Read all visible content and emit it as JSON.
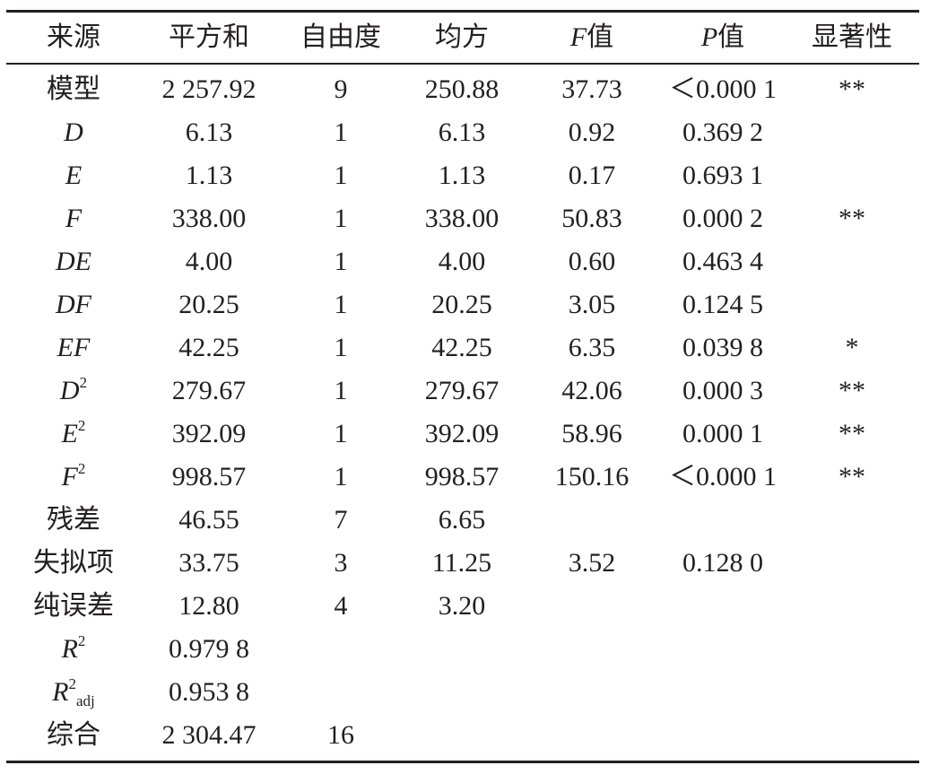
{
  "table": {
    "header": [
      "来源",
      "平方和",
      "自由度",
      "均方",
      {
        "italic": "F",
        "text": "值"
      },
      {
        "italic": "P",
        "text": "值"
      },
      "显著性"
    ],
    "rows": [
      [
        "模型",
        "2 257.92",
        "9",
        "250.88",
        "37.73",
        "＜0.000 1",
        "**"
      ],
      [
        {
          "italic": "D"
        },
        "6.13",
        "1",
        "6.13",
        "0.92",
        "0.369 2"
      ],
      [
        {
          "italic": "E"
        },
        "1.13",
        "1",
        "1.13",
        "0.17",
        "0.693 1"
      ],
      [
        {
          "italic": "F"
        },
        "338.00",
        "1",
        "338.00",
        "50.83",
        "0.000 2",
        "**"
      ],
      [
        {
          "italic": "DE"
        },
        "4.00",
        "1",
        "4.00",
        "0.60",
        "0.463 4"
      ],
      [
        {
          "italic": "DF"
        },
        "20.25",
        "1",
        "20.25",
        "3.05",
        "0.124 5"
      ],
      [
        {
          "italic": "EF"
        },
        "42.25",
        "1",
        "42.25",
        "6.35",
        "0.039 8",
        "*"
      ],
      [
        {
          "italic": "D",
          "sup": "2"
        },
        "279.67",
        "1",
        "279.67",
        "42.06",
        "0.000 3",
        "**"
      ],
      [
        {
          "italic": "E",
          "sup": "2"
        },
        "392.09",
        "1",
        "392.09",
        "58.96",
        "0.000 1",
        "**"
      ],
      [
        {
          "italic": "F",
          "sup": "2"
        },
        "998.57",
        "1",
        "998.57",
        "150.16",
        "＜0.000 1",
        "**"
      ],
      [
        "残差",
        "46.55",
        "7",
        "6.65"
      ],
      [
        "失拟项",
        "33.75",
        "3",
        "11.25",
        "3.52",
        "0.128 0"
      ],
      [
        "纯误差",
        "12.80",
        "4",
        "3.20"
      ],
      [
        {
          "italic": "R",
          "sup": "2"
        },
        "0.979 8"
      ],
      [
        {
          "italic": "R",
          "sup": "2",
          "sub": "adj"
        },
        "0.953 8"
      ],
      [
        "综合",
        "2 304.47",
        "16"
      ]
    ]
  }
}
